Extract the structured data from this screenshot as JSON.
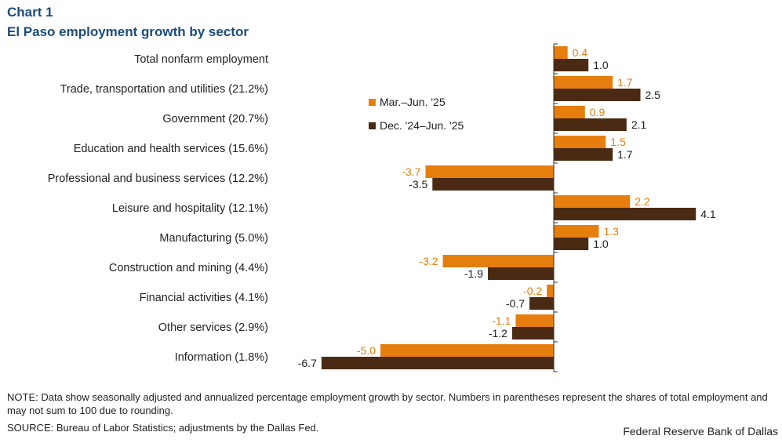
{
  "header": {
    "label": "Chart 1",
    "title": "El Paso employment growth by sector"
  },
  "colors": {
    "series1": "#E67E0E",
    "series2": "#4A2A13",
    "title": "#1a4c7a"
  },
  "chart_data": {
    "type": "bar",
    "orientation": "horizontal",
    "title": "El Paso employment growth by sector",
    "categories": [
      "Total nonfarm employment",
      "Trade, transportation and utilities (21.2%)",
      "Government (20.7%)",
      "Education and health services (15.6%)",
      "Professional and business services (12.2%)",
      "Leisure and hospitality (12.1%)",
      "Manufacturing (5.0%)",
      "Construction and mining (4.4%)",
      "Financial activities (4.1%)",
      "Other services (2.9%)",
      "Information (1.8%)"
    ],
    "series": [
      {
        "name": "Mar.–Jun.  '25",
        "values": [
          0.4,
          1.7,
          0.9,
          1.5,
          -3.7,
          2.2,
          1.3,
          -3.2,
          -0.2,
          -1.1,
          -5.0
        ]
      },
      {
        "name": "Dec. '24–Jun. '25",
        "values": [
          1.0,
          2.5,
          2.1,
          1.7,
          -3.5,
          4.1,
          1.0,
          -1.9,
          -0.7,
          -1.2,
          -6.7
        ]
      }
    ],
    "xlim": [
      -6.7,
      4.1
    ],
    "legend": "upper-center",
    "grid": false
  },
  "footer": {
    "note": "NOTE: Data show seasonally adjusted and annualized percentage employment growth by sector. Numbers in parentheses represent the shares of total employment and may not sum to 100 due to rounding.",
    "source": "SOURCE: Bureau of Labor Statistics; adjustments by the Dallas Fed.",
    "credit": "Federal Reserve Bank of Dallas"
  }
}
